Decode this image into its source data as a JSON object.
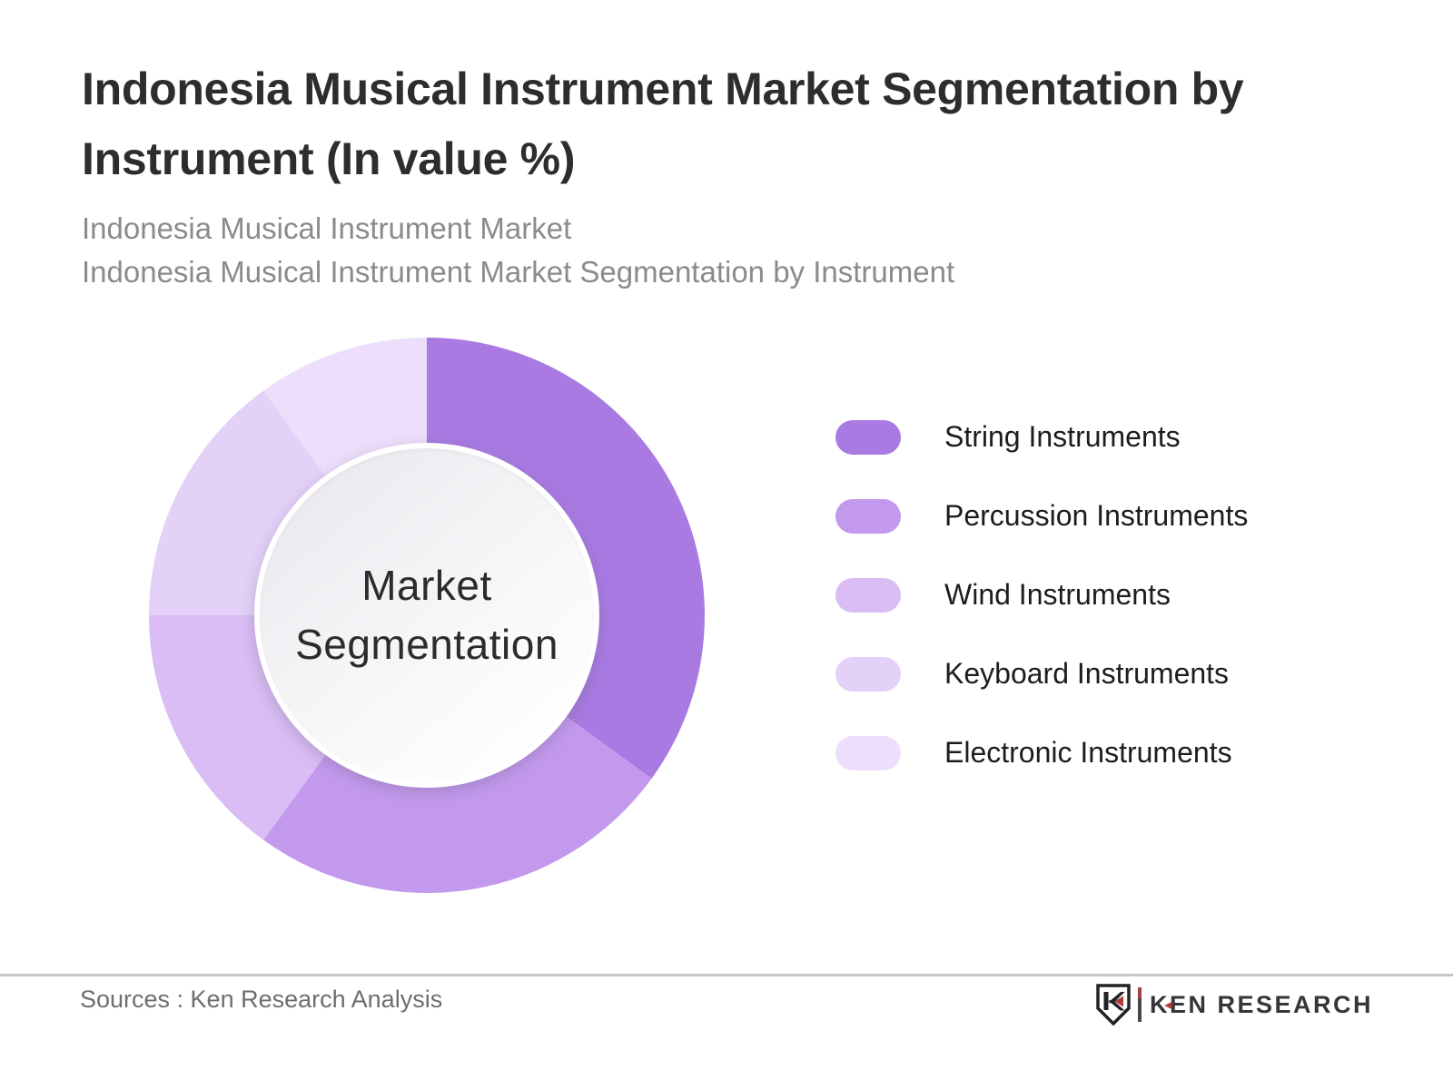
{
  "header": {
    "title_lines": [
      "Indonesia Musical Instrument Market Segmentation by",
      "Instrument (In value %)"
    ],
    "subtitle_lines": [
      "Indonesia Musical Instrument Market",
      "Indonesia Musical Instrument Market Segmentation by Instrument"
    ]
  },
  "chart_data": {
    "type": "pie",
    "variant": "donut",
    "title": "Indonesia Musical Instrument Market Segmentation by Instrument (In value %)",
    "center_label_lines": [
      "Market",
      "Segmentation"
    ],
    "categories": [
      "String Instruments",
      "Percussion Instruments",
      "Wind Instruments",
      "Keyboard Instruments",
      "Electronic Instruments"
    ],
    "values_percent": [
      35,
      25,
      15,
      15,
      10
    ],
    "colors": [
      "#a87ae2",
      "#c399ee",
      "#d9bdf4",
      "#e4d1f8",
      "#eddffb"
    ],
    "start_angle_deg": 0,
    "direction": "clockwise",
    "data_labels": "none",
    "legend_position": "right"
  },
  "legend": {
    "items": [
      {
        "label": "String Instruments",
        "color": "#a87ae2"
      },
      {
        "label": "Percussion Instruments",
        "color": "#c399ee"
      },
      {
        "label": "Wind Instruments",
        "color": "#d9bdf4"
      },
      {
        "label": "Keyboard Instruments",
        "color": "#e4d1f8"
      },
      {
        "label": "Electronic Instruments",
        "color": "#eddffb"
      }
    ]
  },
  "footer": {
    "source_text": "Sources : Ken Research Analysis",
    "logo": {
      "brand": "KEN RESEARCH",
      "arrow_icon": "◄",
      "accent_color": "#b23a3a"
    }
  }
}
